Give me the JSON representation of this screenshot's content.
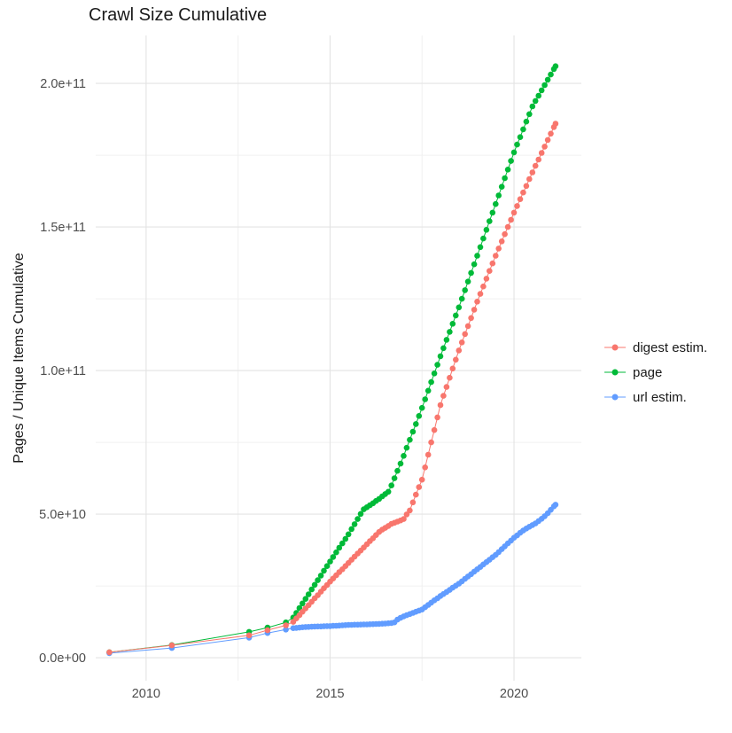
{
  "title": "Crawl Size Cumulative",
  "chart_data": {
    "type": "scatter",
    "title": "Crawl Size Cumulative",
    "xlabel": "",
    "ylabel": "Pages / Unique Items Cumulative",
    "grid": true,
    "legend_position": "right",
    "value_unit": "1e9 (billions of pages / items)",
    "xlim": [
      2008.63,
      2021.83
    ],
    "ylim_e9": [
      -8.0,
      216.7
    ],
    "x_ticks": [
      {
        "value": 2010,
        "label": "2010"
      },
      {
        "value": 2015,
        "label": "2015"
      },
      {
        "value": 2020,
        "label": "2020"
      }
    ],
    "x_minor_ticks": [
      2012.5,
      2017.5
    ],
    "y_ticks": [
      {
        "value_e9": 0,
        "label": "0.0e+00"
      },
      {
        "value_e9": 50,
        "label": "5.0e+10"
      },
      {
        "value_e9": 100,
        "label": "1.0e+11"
      },
      {
        "value_e9": 150,
        "label": "1.5e+11"
      },
      {
        "value_e9": 200,
        "label": "2.0e+11"
      }
    ],
    "y_minor_ticks_e9": [
      25,
      75,
      125,
      175
    ],
    "series": [
      {
        "name": "digest estim.",
        "color": "#F8766D",
        "points": [
          [
            2009.0,
            1.9
          ],
          [
            2010.7,
            4.3
          ],
          [
            2012.8,
            7.8
          ],
          [
            2013.3,
            9.6
          ],
          [
            2013.8,
            11.3
          ],
          [
            2014.0,
            12.5
          ],
          [
            2014.083,
            13.7
          ],
          [
            2014.167,
            14.8
          ],
          [
            2014.25,
            16.0
          ],
          [
            2014.333,
            17.2
          ],
          [
            2014.417,
            18.3
          ],
          [
            2014.5,
            19.5
          ],
          [
            2014.583,
            20.7
          ],
          [
            2014.667,
            21.8
          ],
          [
            2014.75,
            23.0
          ],
          [
            2014.833,
            24.2
          ],
          [
            2014.917,
            25.3
          ],
          [
            2015.0,
            26.5
          ],
          [
            2015.083,
            27.6
          ],
          [
            2015.167,
            28.7
          ],
          [
            2015.25,
            29.8
          ],
          [
            2015.333,
            30.8
          ],
          [
            2015.417,
            31.9
          ],
          [
            2015.5,
            33.0
          ],
          [
            2015.583,
            34.1
          ],
          [
            2015.667,
            35.2
          ],
          [
            2015.75,
            36.3
          ],
          [
            2015.833,
            37.3
          ],
          [
            2015.917,
            38.4
          ],
          [
            2016.0,
            39.5
          ],
          [
            2016.083,
            40.6
          ],
          [
            2016.167,
            41.6
          ],
          [
            2016.25,
            42.7
          ],
          [
            2016.333,
            43.8
          ],
          [
            2016.417,
            44.6
          ],
          [
            2016.5,
            45.2
          ],
          [
            2016.583,
            45.9
          ],
          [
            2016.667,
            46.6
          ],
          [
            2016.75,
            47.0
          ],
          [
            2016.833,
            47.4
          ],
          [
            2016.917,
            47.8
          ],
          [
            2017.0,
            48.3
          ],
          [
            2017.083,
            49.9
          ],
          [
            2017.167,
            51.3
          ],
          [
            2017.25,
            54.1
          ],
          [
            2017.333,
            56.8
          ],
          [
            2017.417,
            59.4
          ],
          [
            2017.5,
            62.0
          ],
          [
            2017.583,
            66.3
          ],
          [
            2017.667,
            70.7
          ],
          [
            2017.75,
            75.0
          ],
          [
            2017.833,
            79.3
          ],
          [
            2017.917,
            83.7
          ],
          [
            2018.0,
            88.0
          ],
          [
            2018.083,
            91.2
          ],
          [
            2018.167,
            94.3
          ],
          [
            2018.25,
            97.5
          ],
          [
            2018.333,
            100.7
          ],
          [
            2018.417,
            103.8
          ],
          [
            2018.5,
            107.0
          ],
          [
            2018.583,
            109.8
          ],
          [
            2018.667,
            112.7
          ],
          [
            2018.75,
            115.5
          ],
          [
            2018.833,
            118.3
          ],
          [
            2018.917,
            121.2
          ],
          [
            2019.0,
            124.0
          ],
          [
            2019.083,
            126.7
          ],
          [
            2019.167,
            129.3
          ],
          [
            2019.25,
            132.0
          ],
          [
            2019.333,
            134.7
          ],
          [
            2019.417,
            137.3
          ],
          [
            2019.5,
            140.0
          ],
          [
            2019.583,
            142.5
          ],
          [
            2019.667,
            145.0
          ],
          [
            2019.75,
            147.5
          ],
          [
            2019.833,
            150.0
          ],
          [
            2019.917,
            152.5
          ],
          [
            2020.0,
            155.0
          ],
          [
            2020.083,
            157.3
          ],
          [
            2020.167,
            159.7
          ],
          [
            2020.25,
            162.0
          ],
          [
            2020.333,
            164.3
          ],
          [
            2020.417,
            166.7
          ],
          [
            2020.5,
            169.0
          ],
          [
            2020.583,
            171.3
          ],
          [
            2020.667,
            173.5
          ],
          [
            2020.75,
            175.8
          ],
          [
            2020.833,
            178.0
          ],
          [
            2020.917,
            180.3
          ],
          [
            2021.0,
            182.5
          ],
          [
            2021.083,
            184.8
          ],
          [
            2021.13,
            186.0
          ]
        ]
      },
      {
        "name": "page",
        "color": "#00BA38",
        "points": [
          [
            2009.0,
            1.9
          ],
          [
            2010.7,
            4.4
          ],
          [
            2012.8,
            9.0
          ],
          [
            2013.3,
            10.5
          ],
          [
            2013.8,
            12.3
          ],
          [
            2014.0,
            14.0
          ],
          [
            2014.083,
            15.6
          ],
          [
            2014.167,
            17.3
          ],
          [
            2014.25,
            18.9
          ],
          [
            2014.333,
            20.5
          ],
          [
            2014.417,
            22.1
          ],
          [
            2014.5,
            23.8
          ],
          [
            2014.583,
            25.4
          ],
          [
            2014.667,
            27.0
          ],
          [
            2014.75,
            28.6
          ],
          [
            2014.833,
            30.3
          ],
          [
            2014.917,
            31.9
          ],
          [
            2015.0,
            33.5
          ],
          [
            2015.083,
            35.1
          ],
          [
            2015.167,
            36.7
          ],
          [
            2015.25,
            38.3
          ],
          [
            2015.333,
            39.8
          ],
          [
            2015.417,
            41.4
          ],
          [
            2015.5,
            43.0
          ],
          [
            2015.583,
            44.8
          ],
          [
            2015.667,
            46.5
          ],
          [
            2015.75,
            48.3
          ],
          [
            2015.833,
            50.1
          ],
          [
            2015.917,
            51.7
          ],
          [
            2016.0,
            52.4
          ],
          [
            2016.083,
            53.1
          ],
          [
            2016.167,
            53.8
          ],
          [
            2016.25,
            54.6
          ],
          [
            2016.333,
            55.3
          ],
          [
            2016.417,
            56.2
          ],
          [
            2016.5,
            57.0
          ],
          [
            2016.583,
            57.8
          ],
          [
            2016.667,
            60.0
          ],
          [
            2016.75,
            62.5
          ],
          [
            2016.833,
            65.1
          ],
          [
            2016.917,
            67.6
          ],
          [
            2017.0,
            70.3
          ],
          [
            2017.083,
            73.1
          ],
          [
            2017.167,
            75.9
          ],
          [
            2017.25,
            78.7
          ],
          [
            2017.333,
            81.4
          ],
          [
            2017.417,
            84.2
          ],
          [
            2017.5,
            87.0
          ],
          [
            2017.583,
            90.0
          ],
          [
            2017.667,
            93.0
          ],
          [
            2017.75,
            96.0
          ],
          [
            2017.833,
            99.0
          ],
          [
            2017.917,
            102.0
          ],
          [
            2018.0,
            105.0
          ],
          [
            2018.083,
            107.8
          ],
          [
            2018.167,
            110.7
          ],
          [
            2018.25,
            113.5
          ],
          [
            2018.333,
            116.3
          ],
          [
            2018.417,
            119.2
          ],
          [
            2018.5,
            122.0
          ],
          [
            2018.583,
            125.0
          ],
          [
            2018.667,
            128.0
          ],
          [
            2018.75,
            131.0
          ],
          [
            2018.833,
            134.0
          ],
          [
            2018.917,
            137.0
          ],
          [
            2019.0,
            140.0
          ],
          [
            2019.083,
            143.0
          ],
          [
            2019.167,
            146.0
          ],
          [
            2019.25,
            149.0
          ],
          [
            2019.333,
            152.0
          ],
          [
            2019.417,
            155.0
          ],
          [
            2019.5,
            158.0
          ],
          [
            2019.583,
            161.0
          ],
          [
            2019.667,
            164.0
          ],
          [
            2019.75,
            167.0
          ],
          [
            2019.833,
            170.0
          ],
          [
            2019.917,
            173.0
          ],
          [
            2020.0,
            176.0
          ],
          [
            2020.083,
            178.7
          ],
          [
            2020.167,
            181.3
          ],
          [
            2020.25,
            184.0
          ],
          [
            2020.333,
            186.7
          ],
          [
            2020.417,
            189.3
          ],
          [
            2020.5,
            192.0
          ],
          [
            2020.583,
            193.9
          ],
          [
            2020.667,
            195.7
          ],
          [
            2020.75,
            197.6
          ],
          [
            2020.833,
            199.4
          ],
          [
            2020.917,
            201.3
          ],
          [
            2021.0,
            203.1
          ],
          [
            2021.083,
            205.0
          ],
          [
            2021.13,
            206.0
          ]
        ]
      },
      {
        "name": "url estim.",
        "color": "#619CFF",
        "points": [
          [
            2009.0,
            1.6
          ],
          [
            2010.7,
            3.4
          ],
          [
            2012.8,
            7.0
          ],
          [
            2013.3,
            8.6
          ],
          [
            2013.8,
            9.8
          ],
          [
            2014.0,
            10.3
          ],
          [
            2014.083,
            10.4
          ],
          [
            2014.167,
            10.5
          ],
          [
            2014.25,
            10.6
          ],
          [
            2014.333,
            10.7
          ],
          [
            2014.417,
            10.75
          ],
          [
            2014.5,
            10.8
          ],
          [
            2014.583,
            10.85
          ],
          [
            2014.667,
            10.9
          ],
          [
            2014.75,
            10.9
          ],
          [
            2014.833,
            10.95
          ],
          [
            2014.917,
            11.0
          ],
          [
            2015.0,
            11.0
          ],
          [
            2015.083,
            11.1
          ],
          [
            2015.167,
            11.15
          ],
          [
            2015.25,
            11.2
          ],
          [
            2015.333,
            11.3
          ],
          [
            2015.417,
            11.35
          ],
          [
            2015.5,
            11.4
          ],
          [
            2015.583,
            11.45
          ],
          [
            2015.667,
            11.5
          ],
          [
            2015.75,
            11.5
          ],
          [
            2015.833,
            11.55
          ],
          [
            2015.917,
            11.6
          ],
          [
            2016.0,
            11.6
          ],
          [
            2016.083,
            11.65
          ],
          [
            2016.167,
            11.7
          ],
          [
            2016.25,
            11.75
          ],
          [
            2016.333,
            11.8
          ],
          [
            2016.417,
            11.85
          ],
          [
            2016.5,
            11.9
          ],
          [
            2016.583,
            12.0
          ],
          [
            2016.667,
            12.1
          ],
          [
            2016.75,
            12.3
          ],
          [
            2016.833,
            13.3
          ],
          [
            2016.917,
            13.9
          ],
          [
            2017.0,
            14.4
          ],
          [
            2017.083,
            14.8
          ],
          [
            2017.167,
            15.2
          ],
          [
            2017.25,
            15.6
          ],
          [
            2017.333,
            16.0
          ],
          [
            2017.417,
            16.4
          ],
          [
            2017.5,
            16.8
          ],
          [
            2017.583,
            17.6
          ],
          [
            2017.667,
            18.4
          ],
          [
            2017.75,
            19.2
          ],
          [
            2017.833,
            20.0
          ],
          [
            2017.917,
            20.7
          ],
          [
            2018.0,
            21.5
          ],
          [
            2018.083,
            22.2
          ],
          [
            2018.167,
            22.9
          ],
          [
            2018.25,
            23.6
          ],
          [
            2018.333,
            24.4
          ],
          [
            2018.417,
            25.1
          ],
          [
            2018.5,
            25.8
          ],
          [
            2018.583,
            26.6
          ],
          [
            2018.667,
            27.5
          ],
          [
            2018.75,
            28.3
          ],
          [
            2018.833,
            29.1
          ],
          [
            2018.917,
            30.0
          ],
          [
            2019.0,
            30.8
          ],
          [
            2019.083,
            31.6
          ],
          [
            2019.167,
            32.5
          ],
          [
            2019.25,
            33.3
          ],
          [
            2019.333,
            34.1
          ],
          [
            2019.417,
            35.0
          ],
          [
            2019.5,
            35.8
          ],
          [
            2019.583,
            36.8
          ],
          [
            2019.667,
            37.8
          ],
          [
            2019.75,
            38.8
          ],
          [
            2019.833,
            39.8
          ],
          [
            2019.917,
            40.8
          ],
          [
            2020.0,
            41.8
          ],
          [
            2020.083,
            42.6
          ],
          [
            2020.167,
            43.5
          ],
          [
            2020.25,
            44.3
          ],
          [
            2020.333,
            45.0
          ],
          [
            2020.417,
            45.6
          ],
          [
            2020.5,
            46.2
          ],
          [
            2020.583,
            46.8
          ],
          [
            2020.667,
            47.6
          ],
          [
            2020.75,
            48.4
          ],
          [
            2020.833,
            49.3
          ],
          [
            2020.917,
            50.3
          ],
          [
            2021.0,
            51.5
          ],
          [
            2021.083,
            52.7
          ],
          [
            2021.13,
            53.3
          ]
        ]
      }
    ],
    "draw_order": [
      1,
      2,
      0
    ]
  },
  "colors": {
    "background": "#ffffff",
    "grid_major": "#e3e3e3",
    "grid_minor": "#f0f0f0",
    "tick_text": "#4d4d4d",
    "digest": "#F8766D",
    "page": "#00BA38",
    "url": "#619CFF"
  }
}
